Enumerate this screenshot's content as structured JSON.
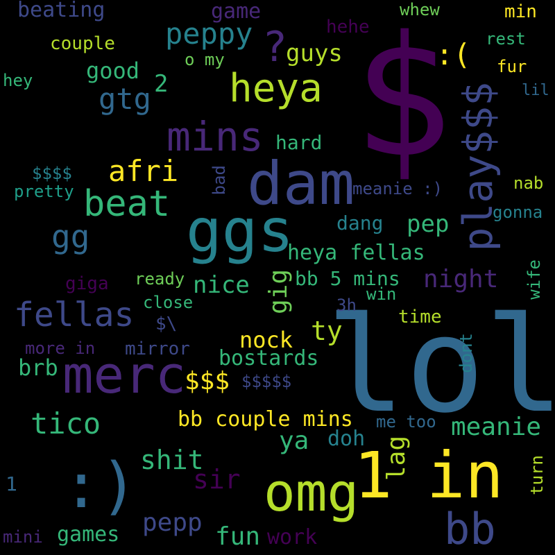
{
  "palette": {
    "background": "#000000",
    "purple_dark": "#440154",
    "purple": "#482878",
    "indigo": "#3e4989",
    "blue": "#31688e",
    "teal": "#26828e",
    "teal_light": "#1f9e89",
    "green": "#35b779",
    "green_light": "#6ece58",
    "lime": "#b5de2b",
    "yellow": "#fde725"
  },
  "words": {
    "dollar_big": "$",
    "lol": "lol",
    "dam": "dam",
    "ggs": "ggs",
    "in": "in",
    "omg": "omg",
    "one_big": "1",
    "smile_big": ":)",
    "merc": "merc",
    "bb_big": "bb",
    "mins": "mins",
    "heya": "heya",
    "beat": "beat",
    "fellas": "fellas",
    "peppy": "peppy",
    "dollar_play": "play$$$",
    "question": "?",
    "afri": "afri",
    "gg": "gg",
    "tico": "tico",
    "meanie": "meanie",
    "shit": "shit",
    "sir": "sir",
    "pepp": "pepp",
    "fun": "fun",
    "games": "games",
    "work": "work",
    "bb_couple": "bb couple mins",
    "heya_fellas": "heya fellas",
    "bb5": "bb 5 mins",
    "night": "night",
    "nice": "nice",
    "gig": "gig",
    "nock": "nock",
    "bostards": "bostards",
    "ty": "ty",
    "dollar3": "$$$",
    "brb": "brb",
    "guys": "guys",
    "gtg": "gtg",
    "good": "good",
    "game": "game",
    "beating": "beating",
    "couple": "couple",
    "hehe": "hehe",
    "sad": ":(",
    "whew": "whew",
    "min": "min",
    "rest": "rest",
    "fur": "fur",
    "lil": "lil",
    "hey": "hey",
    "o_my": "o my",
    "two": "2",
    "hard": "hard",
    "dollar4": "$$$$",
    "pretty": "pretty",
    "bad": "bad",
    "meanie_smile": "meanie :)",
    "nab": "nab",
    "gonna": "gonna",
    "dang": "dang",
    "pep": "pep",
    "giga": "giga",
    "ready": "ready",
    "close": "close",
    "win": "win",
    "wife": "wife",
    "threeh": "3h",
    "time": "time",
    "dollar_backslash": "$\\",
    "more_in": "more in",
    "mirror": "mirror",
    "dont": "dont",
    "dollar5": "$$$$$",
    "me_too": "me too",
    "ya": "ya",
    "doh": "doh",
    "lag": "lag",
    "turn": "turn",
    "one_small": "1",
    "mini": "mini"
  }
}
